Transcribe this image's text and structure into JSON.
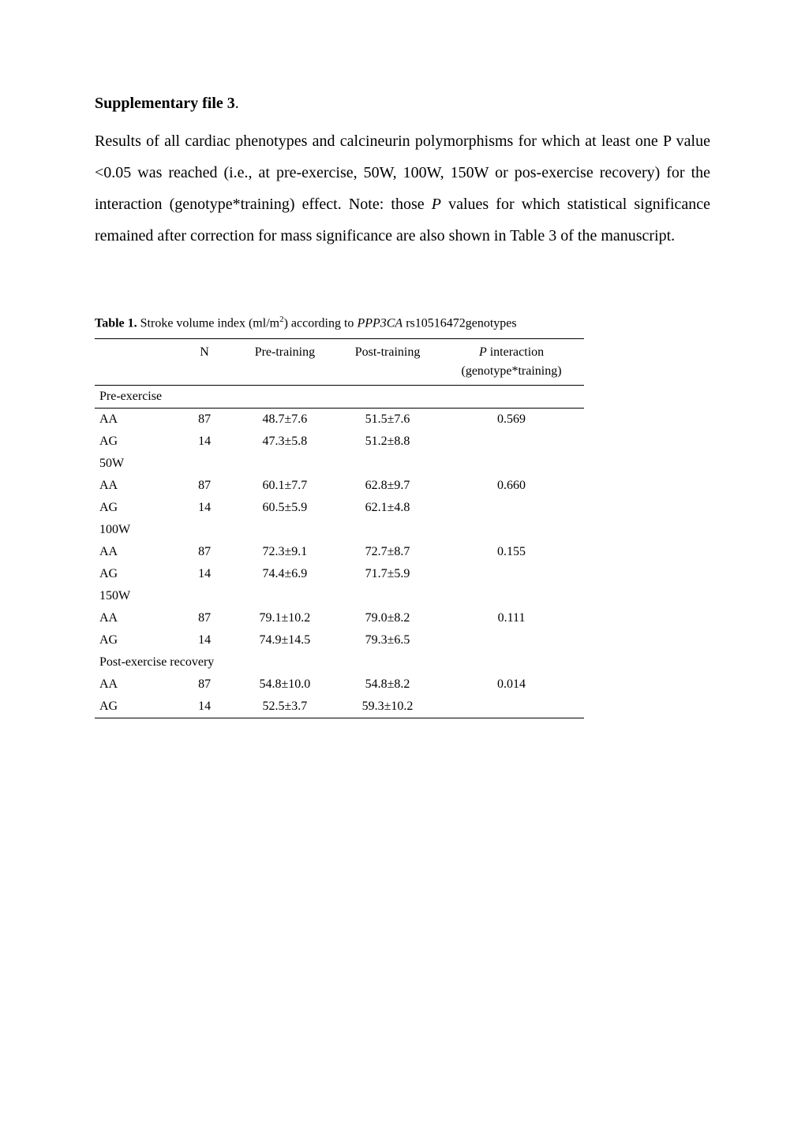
{
  "heading": {
    "bold": "Supplementary file 3",
    "trailing": "."
  },
  "paragraph": "Results of all cardiac phenotypes and calcineurin polymorphisms for which at least one P value <0.05 was reached (i.e., at pre-exercise, 50W, 100W, 150W or pos-exercise recovery) for the interaction (genotype*training) effect. Note: those ",
  "paragraph_italic": "P",
  "paragraph_after": " values for which statistical significance remained after correction for mass significance are also shown in Table 3 of the manuscript.",
  "table_caption": {
    "bold": "Table 1.",
    "text1": " Stroke volume index (ml/m",
    "sup": "2",
    "text2": ") according to ",
    "italic": "PPP3CA",
    "text3": " rs10516472genotypes"
  },
  "table": {
    "headers": {
      "c1": "",
      "c2": "N",
      "c3": "Pre-training",
      "c4": "Post-training",
      "c5_line1": "P",
      "c5_line1_after": " interaction",
      "c5_line2": "(genotype*training)"
    },
    "sections": [
      {
        "title": "Pre-exercise",
        "title_has_border": true,
        "rows": [
          {
            "label": "AA",
            "n": "87",
            "pre": "48.7±7.6",
            "post": "51.5±7.6",
            "p": "0.569"
          },
          {
            "label": "AG",
            "n": "14",
            "pre": "47.3±5.8",
            "post": "51.2±8.8",
            "p": ""
          }
        ]
      },
      {
        "title": "50W",
        "rows": [
          {
            "label": "AA",
            "n": "87",
            "pre": "60.1±7.7",
            "post": "62.8±9.7",
            "p": "0.660"
          },
          {
            "label": "AG",
            "n": "14",
            "pre": "60.5±5.9",
            "post": "62.1±4.8",
            "p": ""
          }
        ]
      },
      {
        "title": "100W",
        "rows": [
          {
            "label": "AA",
            "n": "87",
            "pre": "72.3±9.1",
            "post": "72.7±8.7",
            "p": "0.155"
          },
          {
            "label": "AG",
            "n": "14",
            "pre": "74.4±6.9",
            "post": "71.7±5.9",
            "p": ""
          }
        ]
      },
      {
        "title": "150W",
        "rows": [
          {
            "label": "AA",
            "n": "87",
            "pre": "79.1±10.2",
            "post": "79.0±8.2",
            "p": "0.111"
          },
          {
            "label": "AG",
            "n": "14",
            "pre": "74.9±14.5",
            "post": "79.3±6.5",
            "p": ""
          }
        ]
      },
      {
        "title": "Post-exercise recovery",
        "rows": [
          {
            "label": "AA",
            "n": "87",
            "pre": "54.8±10.0",
            "post": "54.8±8.2",
            "p": "0.014"
          },
          {
            "label": "AG",
            "n": "14",
            "pre": "52.5±3.7",
            "post": "59.3±10.2",
            "p": ""
          }
        ]
      }
    ]
  }
}
